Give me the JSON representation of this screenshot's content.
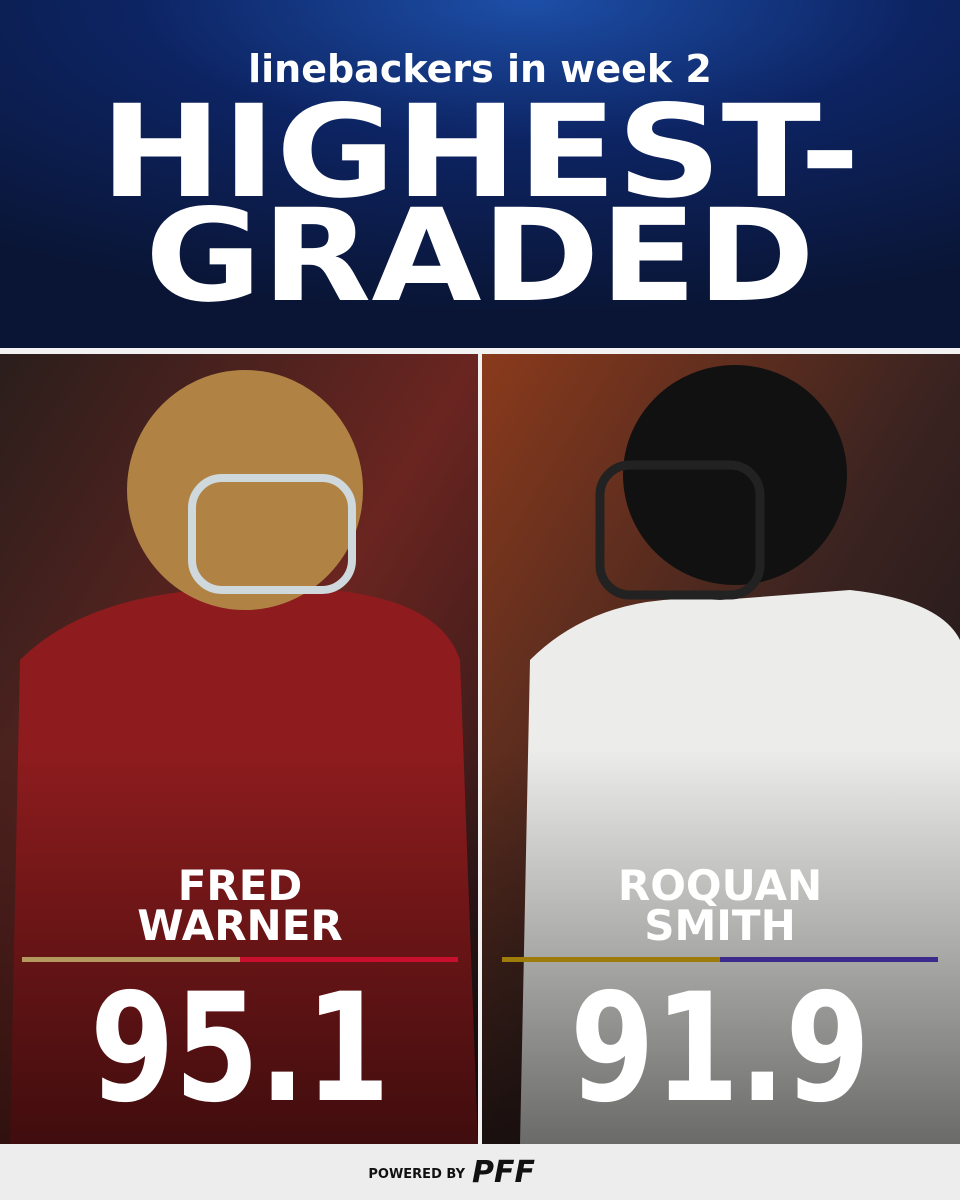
{
  "header": {
    "subtitle": "linebackers in week 2",
    "title_lines": [
      "HIGHEST-",
      "GRADED"
    ]
  },
  "players": [
    {
      "name_lines": [
        "FRED",
        "WARNER"
      ],
      "grade": 95.1
    },
    {
      "name_lines": [
        "ROQUAN",
        "SMITH"
      ],
      "grade": 91.9
    }
  ],
  "footer": {
    "powered_by": "POWERED BY",
    "brand": "PFF"
  }
}
